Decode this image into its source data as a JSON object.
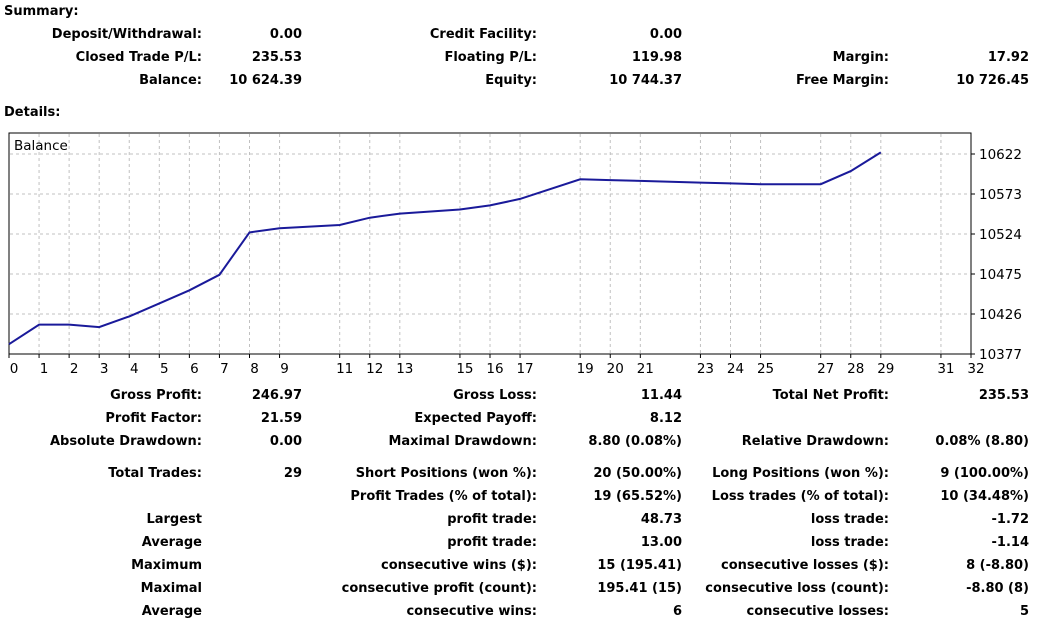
{
  "summary": {
    "title": "Summary:",
    "rows": [
      [
        {
          "label": "Deposit/Withdrawal:",
          "value": "0.00"
        },
        {
          "label": "Credit Facility:",
          "value": "0.00"
        },
        null
      ],
      [
        {
          "label": "Closed Trade P/L:",
          "value": "235.53"
        },
        {
          "label": "Floating P/L:",
          "value": "119.98"
        },
        {
          "label": "Margin:",
          "value": "17.92"
        }
      ],
      [
        {
          "label": "Balance:",
          "value": "10 624.39"
        },
        {
          "label": "Equity:",
          "value": "10 744.37"
        },
        {
          "label": "Free Margin:",
          "value": "10 726.45"
        }
      ]
    ]
  },
  "details": {
    "title": "Details:"
  },
  "chart_data": {
    "type": "line",
    "title": "Balance",
    "xlabel": "",
    "ylabel": "",
    "x_ticks": [
      0,
      1,
      2,
      3,
      4,
      5,
      6,
      7,
      8,
      9,
      11,
      12,
      13,
      15,
      16,
      17,
      19,
      20,
      21,
      23,
      24,
      25,
      27,
      28,
      29,
      31,
      32
    ],
    "y_ticks": [
      10377,
      10426,
      10475,
      10524,
      10573,
      10622
    ],
    "x": [
      0,
      1,
      2,
      3,
      4,
      5,
      6,
      7,
      8,
      9,
      11,
      12,
      13,
      15,
      16,
      17,
      19,
      20,
      21,
      23,
      24,
      25,
      27,
      28,
      29
    ],
    "y": [
      10389,
      10413,
      10413,
      10410,
      10423,
      10439,
      10455,
      10474,
      10526,
      10531,
      10535,
      10544,
      10549,
      10554,
      10559,
      10567,
      10591,
      10590,
      10589,
      10587,
      10586,
      10585,
      10585,
      10601,
      10624
    ],
    "grid": true,
    "line_color": "#1a1a9a"
  },
  "stats": {
    "rows": [
      [
        {
          "label": "Gross Profit:",
          "value": "246.97"
        },
        {
          "label": "Gross Loss:",
          "value": "11.44"
        },
        {
          "label": "Total Net Profit:",
          "value": "235.53"
        }
      ],
      [
        {
          "label": "Profit Factor:",
          "value": "21.59"
        },
        {
          "label": "Expected Payoff:",
          "value": "8.12"
        },
        null
      ],
      [
        {
          "label": "Absolute Drawdown:",
          "value": "0.00"
        },
        {
          "label": "Maximal Drawdown:",
          "value": "8.80 (0.08%)"
        },
        {
          "label": "Relative Drawdown:",
          "value": "0.08% (8.80)"
        }
      ],
      [
        {
          "label": "Total Trades:",
          "value": "29"
        },
        {
          "label": "Short Positions (won %):",
          "value": "20 (50.00%)"
        },
        {
          "label": "Long Positions (won %):",
          "value": "9 (100.00%)"
        }
      ],
      [
        null,
        {
          "label": "Profit Trades (% of total):",
          "value": "19 (65.52%)"
        },
        {
          "label": "Loss trades (% of total):",
          "value": "10 (34.48%)"
        }
      ],
      [
        {
          "label": "Largest",
          "value": ""
        },
        {
          "label": "profit trade:",
          "value": "48.73"
        },
        {
          "label": "loss trade:",
          "value": "-1.72"
        }
      ],
      [
        {
          "label": "Average",
          "value": ""
        },
        {
          "label": "profit trade:",
          "value": "13.00"
        },
        {
          "label": "loss trade:",
          "value": "-1.14"
        }
      ],
      [
        {
          "label": "Maximum",
          "value": ""
        },
        {
          "label": "consecutive wins ($):",
          "value": "15 (195.41)"
        },
        {
          "label": "consecutive losses ($):",
          "value": "8 (-8.80)"
        }
      ],
      [
        {
          "label": "Maximal",
          "value": ""
        },
        {
          "label": "consecutive profit (count):",
          "value": "195.41 (15)"
        },
        {
          "label": "consecutive loss (count):",
          "value": "-8.80 (8)"
        }
      ],
      [
        {
          "label": "Average",
          "value": ""
        },
        {
          "label": "consecutive wins:",
          "value": "6"
        },
        {
          "label": "consecutive losses:",
          "value": "5"
        }
      ]
    ]
  }
}
